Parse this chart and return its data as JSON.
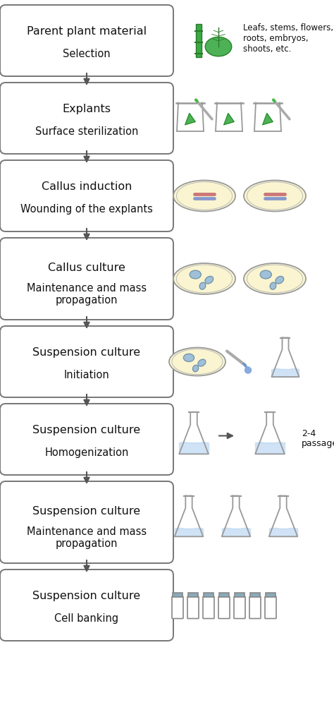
{
  "steps": [
    {
      "title": "Parent plant material",
      "subtitle": "Selection",
      "has_two_line_sub": false
    },
    {
      "title": "Explants",
      "subtitle": "Surface sterilization",
      "has_two_line_sub": false
    },
    {
      "title": "Callus induction",
      "subtitle": "Wounding of the explants",
      "has_two_line_sub": false
    },
    {
      "title": "Callus culture",
      "subtitle": "Maintenance and mass\npropagation",
      "has_two_line_sub": true
    },
    {
      "title": "Suspension culture",
      "subtitle": "Initiation",
      "has_two_line_sub": false
    },
    {
      "title": "Suspension culture",
      "subtitle": "Homogenization",
      "has_two_line_sub": false
    },
    {
      "title": "Suspension culture",
      "subtitle": "Maintenance and mass\npropagation",
      "has_two_line_sub": true
    },
    {
      "title": "Suspension culture",
      "subtitle": "Cell banking",
      "has_two_line_sub": false
    }
  ],
  "box_color": "#ffffff",
  "box_edge": "#777777",
  "arrow_color": "#555555",
  "text_color": "#111111",
  "bg_color": "#ffffff",
  "title_fontsize": 11.5,
  "subtitle_fontsize": 10.5,
  "green_dark": "#2a7a2a",
  "green_light": "#3aaa3a",
  "green_stem": "#2d8a2d",
  "callus_blue": "#a0bfd8",
  "callus_edge": "#7090a8",
  "petri_fill": "#faf5d0",
  "petri_edge": "#999999",
  "flask_fill": "#c8dff5",
  "vial_fill": "#b8dae8",
  "beaker_edge": "#999999"
}
